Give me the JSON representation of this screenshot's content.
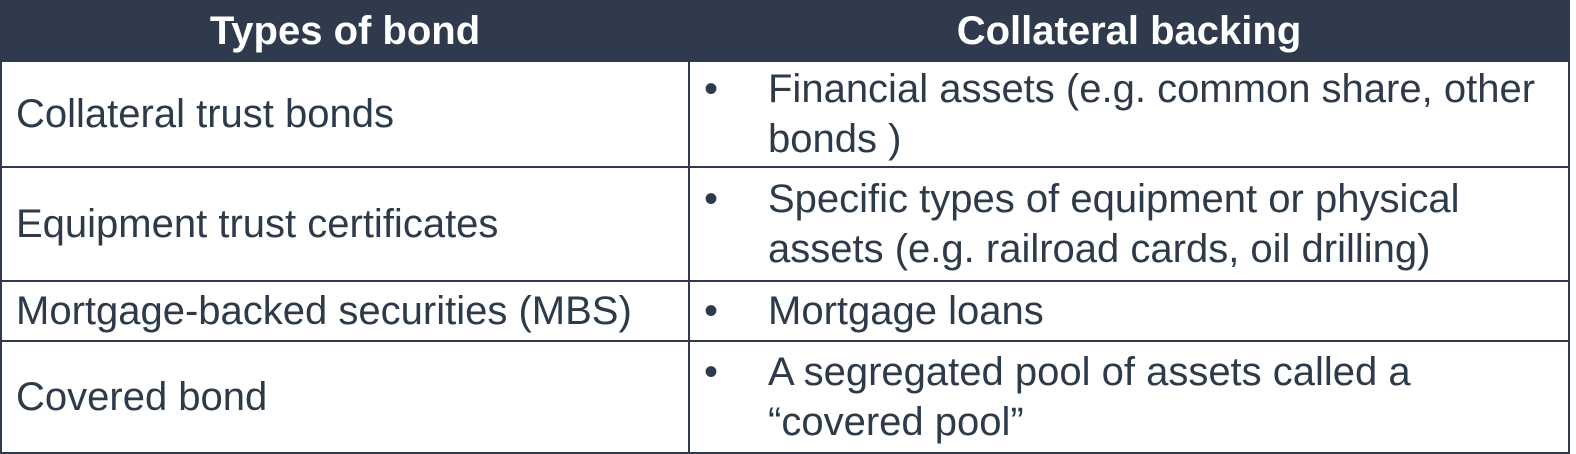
{
  "table": {
    "headers": {
      "type": "Types of bond",
      "backing": "Collateral backing"
    },
    "bullet_glyph": "•",
    "rows": [
      {
        "type": "Collateral trust bonds",
        "backing": "Financial assets (e.g. common share, other bonds )"
      },
      {
        "type": "Equipment trust certificates",
        "backing": "Specific types of equipment or physical assets (e.g. railroad cards, oil drilling)"
      },
      {
        "type": "Mortgage-backed securities (MBS)",
        "backing": "Mortgage loans"
      },
      {
        "type": "Covered bond",
        "backing": "A segregated pool of assets called a “covered pool”"
      }
    ]
  }
}
